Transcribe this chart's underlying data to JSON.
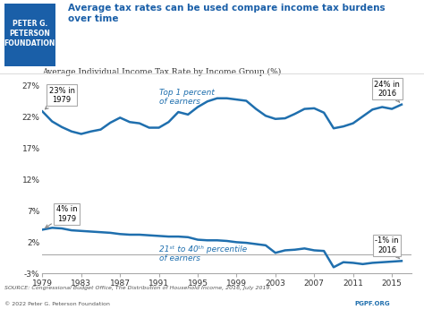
{
  "title_main": "Average tax rates can be used compare income tax burdens\nover time",
  "chart_title": "Average Individual Income Tax Rate by Income Group (%)",
  "source_text": "SOURCE: Congressional Budget Office, The Distribution of Household Income, 2016, July 2019.",
  "copyright_text": "© 2022 Peter G. Peterson Foundation",
  "pgpf_text": "PGPF.ORG",
  "line_color": "#1F6FAE",
  "background_color": "#FFFFFF",
  "header_bg": "#FFFFFF",
  "ylim": [
    -3,
    28
  ],
  "yticks": [
    -3,
    2,
    7,
    12,
    17,
    22,
    27
  ],
  "ytick_labels": [
    "-3%",
    "2%",
    "7%",
    "12%",
    "17%",
    "22%",
    "27%"
  ],
  "xticks": [
    1979,
    1983,
    1987,
    1991,
    1995,
    1999,
    2003,
    2007,
    2011,
    2015
  ],
  "top1_years": [
    1979,
    1980,
    1981,
    1982,
    1983,
    1984,
    1985,
    1986,
    1987,
    1988,
    1989,
    1990,
    1991,
    1992,
    1993,
    1994,
    1995,
    1996,
    1997,
    1998,
    1999,
    2000,
    2001,
    2002,
    2003,
    2004,
    2005,
    2006,
    2007,
    2008,
    2009,
    2010,
    2011,
    2012,
    2013,
    2014,
    2015,
    2016
  ],
  "top1_values": [
    22.9,
    21.3,
    20.4,
    19.7,
    19.3,
    19.7,
    20.0,
    21.1,
    21.9,
    21.2,
    21.0,
    20.3,
    20.3,
    21.2,
    22.8,
    22.4,
    23.6,
    24.5,
    25.0,
    25.0,
    24.8,
    24.6,
    23.3,
    22.2,
    21.7,
    21.8,
    22.5,
    23.3,
    23.4,
    22.7,
    20.2,
    20.5,
    21.0,
    22.1,
    23.2,
    23.6,
    23.3,
    24.0
  ],
  "mid_years": [
    1979,
    1980,
    1981,
    1982,
    1983,
    1984,
    1985,
    1986,
    1987,
    1988,
    1989,
    1990,
    1991,
    1992,
    1993,
    1994,
    1995,
    1996,
    1997,
    1998,
    1999,
    2000,
    2001,
    2002,
    2003,
    2004,
    2005,
    2006,
    2007,
    2008,
    2009,
    2010,
    2011,
    2012,
    2013,
    2014,
    2015,
    2016
  ],
  "mid_values": [
    4.0,
    4.3,
    4.2,
    3.9,
    3.8,
    3.7,
    3.6,
    3.5,
    3.3,
    3.2,
    3.2,
    3.1,
    3.0,
    2.9,
    2.9,
    2.8,
    2.4,
    2.3,
    2.3,
    2.2,
    2.0,
    1.9,
    1.7,
    1.5,
    0.3,
    0.7,
    0.8,
    1.0,
    0.7,
    0.6,
    -2.0,
    -1.2,
    -1.3,
    -1.5,
    -1.3,
    -1.2,
    -1.1,
    -1.0
  ],
  "annotation_23_text": "23% in\n1979",
  "annotation_24_text": "24% in\n2016",
  "annotation_4_text": "4% in\n1979",
  "annotation_m1_text": "-1% in\n2016",
  "label_top1": "Top 1 percent\nof earners",
  "label_mid": "21ˢᵗ to 40ᵗʰ percentile\nof earners"
}
